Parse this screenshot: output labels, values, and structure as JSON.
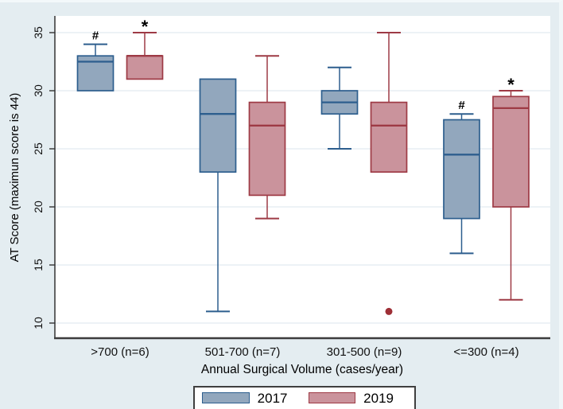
{
  "figure": {
    "background": "#e4edf1",
    "plot_background": "#ffffff",
    "grid_color": "#e7eef3",
    "y_axis_color": "#333333",
    "x_axis_color": "#3d3d3d",
    "outlier_color": "#9e2f36"
  },
  "chart_data": {
    "type": "boxplot",
    "title": "",
    "xlabel": "Annual Surgical Volume (cases/year)",
    "ylabel": "AT Score (maximun score is 44)",
    "categories": [
      ">700 (n=6)",
      "501-700 (n=7)",
      "301-500 (n=9)",
      "<=300 (n=4)"
    ],
    "yticks": [
      "35",
      "30",
      "25",
      "20",
      "15",
      "10"
    ],
    "ytick_values": [
      35,
      30,
      25,
      20,
      15,
      10
    ],
    "ylim": [
      8.5,
      36.5
    ],
    "grid": true,
    "legend_position": "bottom",
    "series": [
      {
        "name": "2017",
        "fill": "#92a7bd",
        "stroke": "#2d5e8e",
        "boxes": [
          {
            "low": 30,
            "q1": 30,
            "median": 32.5,
            "q3": 33,
            "high": 34,
            "mark": "#"
          },
          {
            "low": 11,
            "q1": 23,
            "median": 28,
            "q3": 31,
            "high": 31
          },
          {
            "low": 25,
            "q1": 28,
            "median": 29,
            "q3": 30,
            "high": 32
          },
          {
            "low": 16,
            "q1": 19,
            "median": 24.5,
            "q3": 27.5,
            "high": 28,
            "mark": "#"
          }
        ]
      },
      {
        "name": "2019",
        "fill": "#ca939c",
        "stroke": "#9e3a45",
        "boxes": [
          {
            "low": 31,
            "q1": 31,
            "median": 33,
            "q3": 33,
            "high": 35,
            "mark": "*"
          },
          {
            "low": 19,
            "q1": 21,
            "median": 27,
            "q3": 29,
            "high": 33
          },
          {
            "low": 23,
            "q1": 23,
            "median": 27,
            "q3": 29,
            "high": 35,
            "outliers": [
              11
            ]
          },
          {
            "low": 12,
            "q1": 20,
            "median": 28.5,
            "q3": 29.5,
            "high": 30,
            "mark": "*"
          }
        ]
      }
    ]
  },
  "legend": {
    "items": [
      {
        "label": "2017"
      },
      {
        "label": "2019"
      }
    ]
  }
}
